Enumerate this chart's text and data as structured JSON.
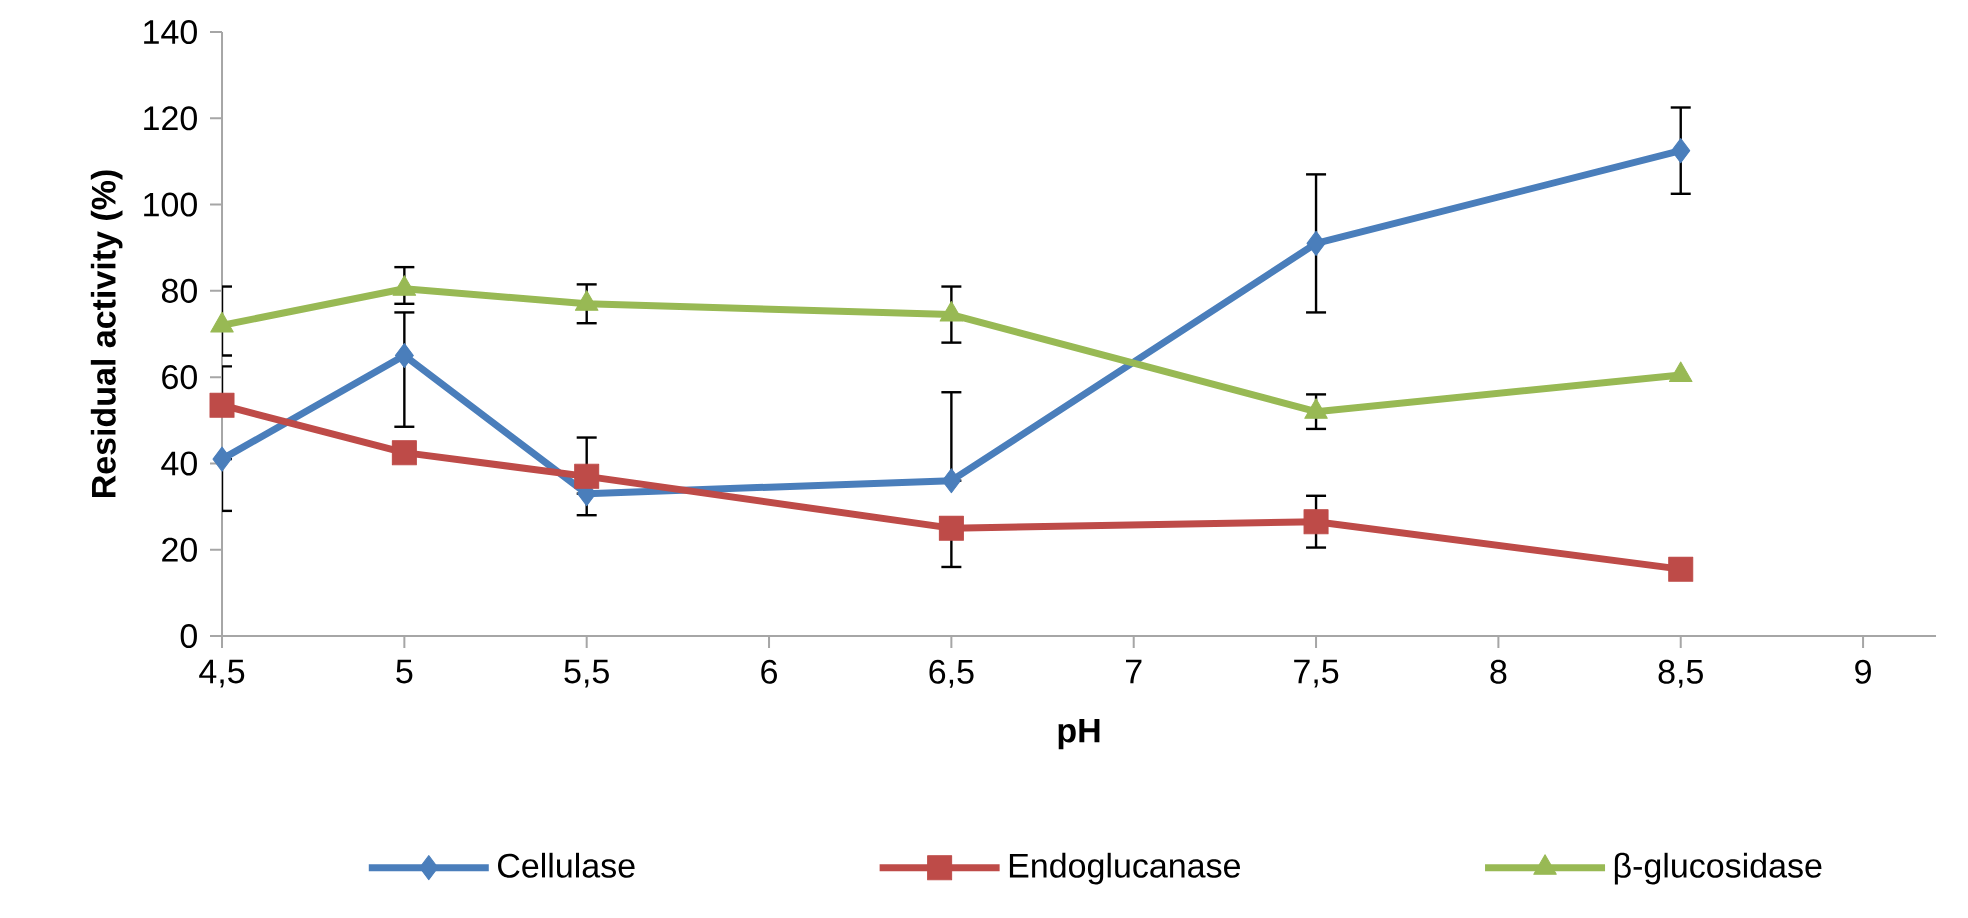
{
  "chart_data": {
    "type": "line",
    "xlabel": "pH",
    "ylabel": "Residual activity (%)",
    "x": [
      4.5,
      5,
      5.5,
      6.5,
      7.5,
      8.5
    ],
    "series": [
      {
        "name": "Cellulase",
        "color": "#4a7ebb",
        "marker": "diamond",
        "values": [
          41,
          65,
          33,
          36,
          91,
          112.5
        ],
        "errors": [
          [
            29,
            41
          ],
          [
            48.5,
            75
          ],
          [
            28,
            33
          ],
          [
            36,
            56.5
          ],
          16,
          10
        ]
      },
      {
        "name": "Endoglucanase",
        "color": "#be4b48",
        "marker": "square",
        "values": [
          53.5,
          42.5,
          37,
          25,
          26.5,
          15.5
        ],
        "errors": [
          [
            53.5,
            62.5
          ],
          null,
          [
            37,
            46
          ],
          [
            16,
            25
          ],
          6,
          null
        ]
      },
      {
        "name": "β-glucosidase",
        "color": "#98b954",
        "marker": "triangle",
        "values": [
          72,
          80.5,
          77,
          74.5,
          52,
          60.5
        ],
        "errors": [
          [
            65,
            81
          ],
          [
            77,
            85.5
          ],
          4.5,
          6.5,
          4,
          null
        ]
      }
    ],
    "xlim": [
      4.5,
      9.2
    ],
    "xticks": [
      {
        "value": 4.5,
        "label": "4,5"
      },
      5,
      {
        "value": 5.5,
        "label": "5,5"
      },
      6,
      {
        "value": 6.5,
        "label": "6,5"
      },
      7,
      {
        "value": 7.5,
        "label": "7,5"
      },
      8,
      {
        "value": 8.5,
        "label": "8,5"
      },
      9
    ],
    "ylim": [
      0,
      140
    ],
    "yticks": [
      0,
      20,
      40,
      60,
      80,
      100,
      120,
      140
    ],
    "grid": false,
    "legend": "bottom",
    "line_style": "solid"
  }
}
